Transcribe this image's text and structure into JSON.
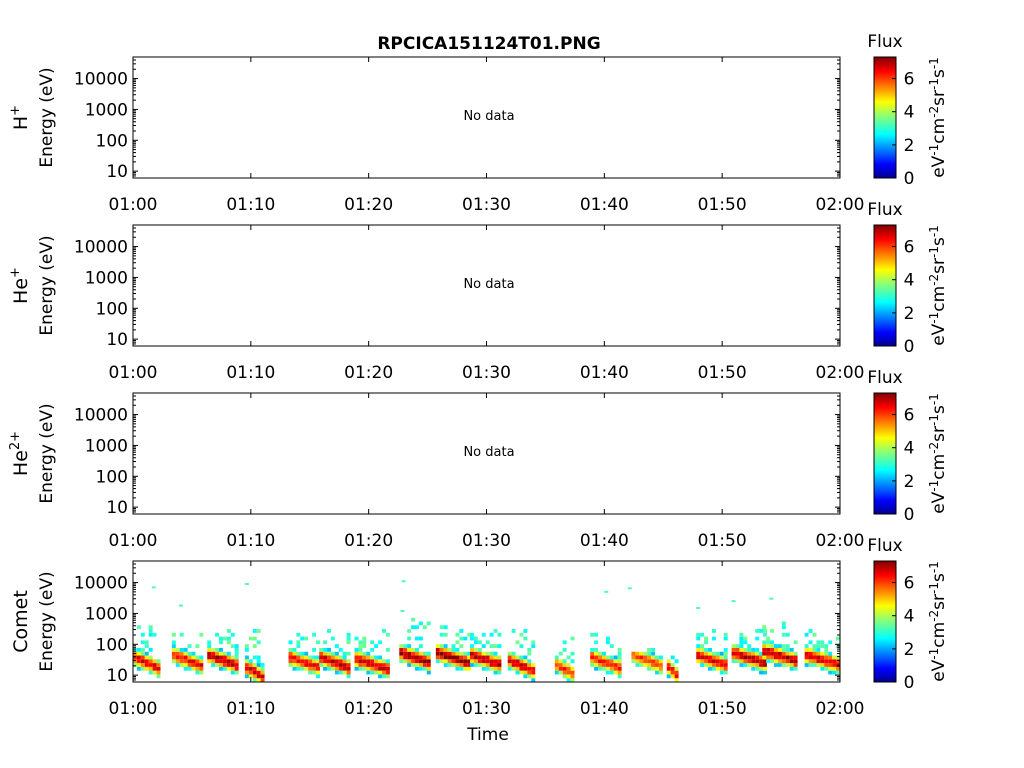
{
  "figure": {
    "title": "RPCICA151124T01.PNG",
    "xlabel": "Time",
    "no_data_text": "No data",
    "colorbar": {
      "label": "Flux",
      "unit_base": [
        "eV",
        "cm",
        "sr",
        "s"
      ],
      "unit_exp": [
        "-1",
        "-2",
        "-1",
        "-1"
      ],
      "ticks": [
        "0",
        "2",
        "4",
        "6"
      ],
      "range": [
        0,
        7.3
      ],
      "colormap": "jet"
    }
  },
  "chart_data": [
    {
      "type": "heatmap",
      "panel": "H+",
      "ylabel_species": "H",
      "ylabel_species_sup": "+",
      "ylabel_unit": "Energy (eV)",
      "x_ticks": [
        "01:00",
        "01:10",
        "01:20",
        "01:30",
        "01:40",
        "01:50",
        "02:00"
      ],
      "y_ticks": [
        "10",
        "100",
        "1000",
        "10000"
      ],
      "y_scale": "log",
      "ylim": [
        6,
        50000
      ],
      "has_data": false,
      "annotation": "No data"
    },
    {
      "type": "heatmap",
      "panel": "He+",
      "ylabel_species": "He",
      "ylabel_species_sup": "+",
      "ylabel_unit": "Energy (eV)",
      "x_ticks": [
        "01:00",
        "01:10",
        "01:20",
        "01:30",
        "01:40",
        "01:50",
        "02:00"
      ],
      "y_ticks": [
        "10",
        "100",
        "1000",
        "10000"
      ],
      "y_scale": "log",
      "ylim": [
        6,
        50000
      ],
      "has_data": false,
      "annotation": "No data"
    },
    {
      "type": "heatmap",
      "panel": "He2+",
      "ylabel_species": "He",
      "ylabel_species_sup": "2+",
      "ylabel_unit": "Energy (eV)",
      "x_ticks": [
        "01:00",
        "01:10",
        "01:20",
        "01:30",
        "01:40",
        "01:50",
        "02:00"
      ],
      "y_ticks": [
        "10",
        "100",
        "1000",
        "10000"
      ],
      "y_scale": "log",
      "ylim": [
        6,
        50000
      ],
      "has_data": false,
      "annotation": "No data"
    },
    {
      "type": "heatmap",
      "panel": "Comet",
      "ylabel_species": "Comet",
      "ylabel_species_sup": "",
      "ylabel_unit": "Energy (eV)",
      "x_ticks": [
        "01:00",
        "01:10",
        "01:20",
        "01:30",
        "01:40",
        "01:50",
        "02:00"
      ],
      "y_ticks": [
        "10",
        "100",
        "1000",
        "10000"
      ],
      "y_scale": "log",
      "ylim": [
        6,
        50000
      ],
      "xlim_minutes": [
        0,
        60
      ],
      "has_data": true,
      "bursts": [
        {
          "t_start": 0.0,
          "t_end": 2.0,
          "e_peak": 25,
          "e_top": 350,
          "peak_flux": 6.6
        },
        {
          "t_start": 3.3,
          "t_end": 5.7,
          "e_peak": 30,
          "e_top": 300,
          "peak_flux": 6.4
        },
        {
          "t_start": 6.3,
          "t_end": 8.7,
          "e_peak": 30,
          "e_top": 250,
          "peak_flux": 6.9
        },
        {
          "t_start": 9.5,
          "t_end": 11.0,
          "e_peak": 12,
          "e_top": 300,
          "peak_flux": 6.8
        },
        {
          "t_start": 13.2,
          "t_end": 15.7,
          "e_peak": 25,
          "e_top": 250,
          "peak_flux": 6.5
        },
        {
          "t_start": 15.8,
          "t_end": 18.3,
          "e_peak": 25,
          "e_top": 300,
          "peak_flux": 7.0
        },
        {
          "t_start": 18.8,
          "t_end": 21.6,
          "e_peak": 22,
          "e_top": 200,
          "peak_flux": 6.8
        },
        {
          "t_start": 22.6,
          "t_end": 25.2,
          "e_peak": 35,
          "e_top": 500,
          "peak_flux": 7.1
        },
        {
          "t_start": 25.7,
          "t_end": 28.6,
          "e_peak": 35,
          "e_top": 400,
          "peak_flux": 7.2
        },
        {
          "t_start": 28.6,
          "t_end": 31.2,
          "e_peak": 30,
          "e_top": 300,
          "peak_flux": 6.9
        },
        {
          "t_start": 31.8,
          "t_end": 33.9,
          "e_peak": 20,
          "e_top": 250,
          "peak_flux": 6.8
        },
        {
          "t_start": 35.8,
          "t_end": 37.3,
          "e_peak": 15,
          "e_top": 150,
          "peak_flux": 6.2
        },
        {
          "t_start": 38.8,
          "t_end": 41.2,
          "e_peak": 25,
          "e_top": 200,
          "peak_flux": 6.3
        },
        {
          "t_start": 42.3,
          "t_end": 44.7,
          "e_peak": 30,
          "e_top": 80,
          "peak_flux": 6.0
        },
        {
          "t_start": 45.3,
          "t_end": 46.3,
          "e_peak": 12,
          "e_top": 50,
          "peak_flux": 6.4
        },
        {
          "t_start": 47.8,
          "t_end": 50.3,
          "e_peak": 30,
          "e_top": 250,
          "peak_flux": 6.7
        },
        {
          "t_start": 50.8,
          "t_end": 53.6,
          "e_peak": 35,
          "e_top": 300,
          "peak_flux": 6.9
        },
        {
          "t_start": 53.4,
          "t_end": 56.4,
          "e_peak": 40,
          "e_top": 350,
          "peak_flux": 7.0
        },
        {
          "t_start": 57.0,
          "t_end": 60.0,
          "e_peak": 30,
          "e_top": 300,
          "peak_flux": 6.8
        }
      ],
      "sporadic_points": [
        {
          "t": 1.6,
          "e": 7000
        },
        {
          "t": 9.5,
          "e": 9000
        },
        {
          "t": 22.8,
          "e": 11000
        },
        {
          "t": 40.0,
          "e": 5000
        },
        {
          "t": 42.0,
          "e": 6500
        },
        {
          "t": 47.8,
          "e": 1500
        },
        {
          "t": 50.8,
          "e": 2500
        },
        {
          "t": 54.0,
          "e": 3000
        },
        {
          "t": 3.9,
          "e": 1800
        },
        {
          "t": 22.7,
          "e": 1200
        }
      ]
    }
  ]
}
